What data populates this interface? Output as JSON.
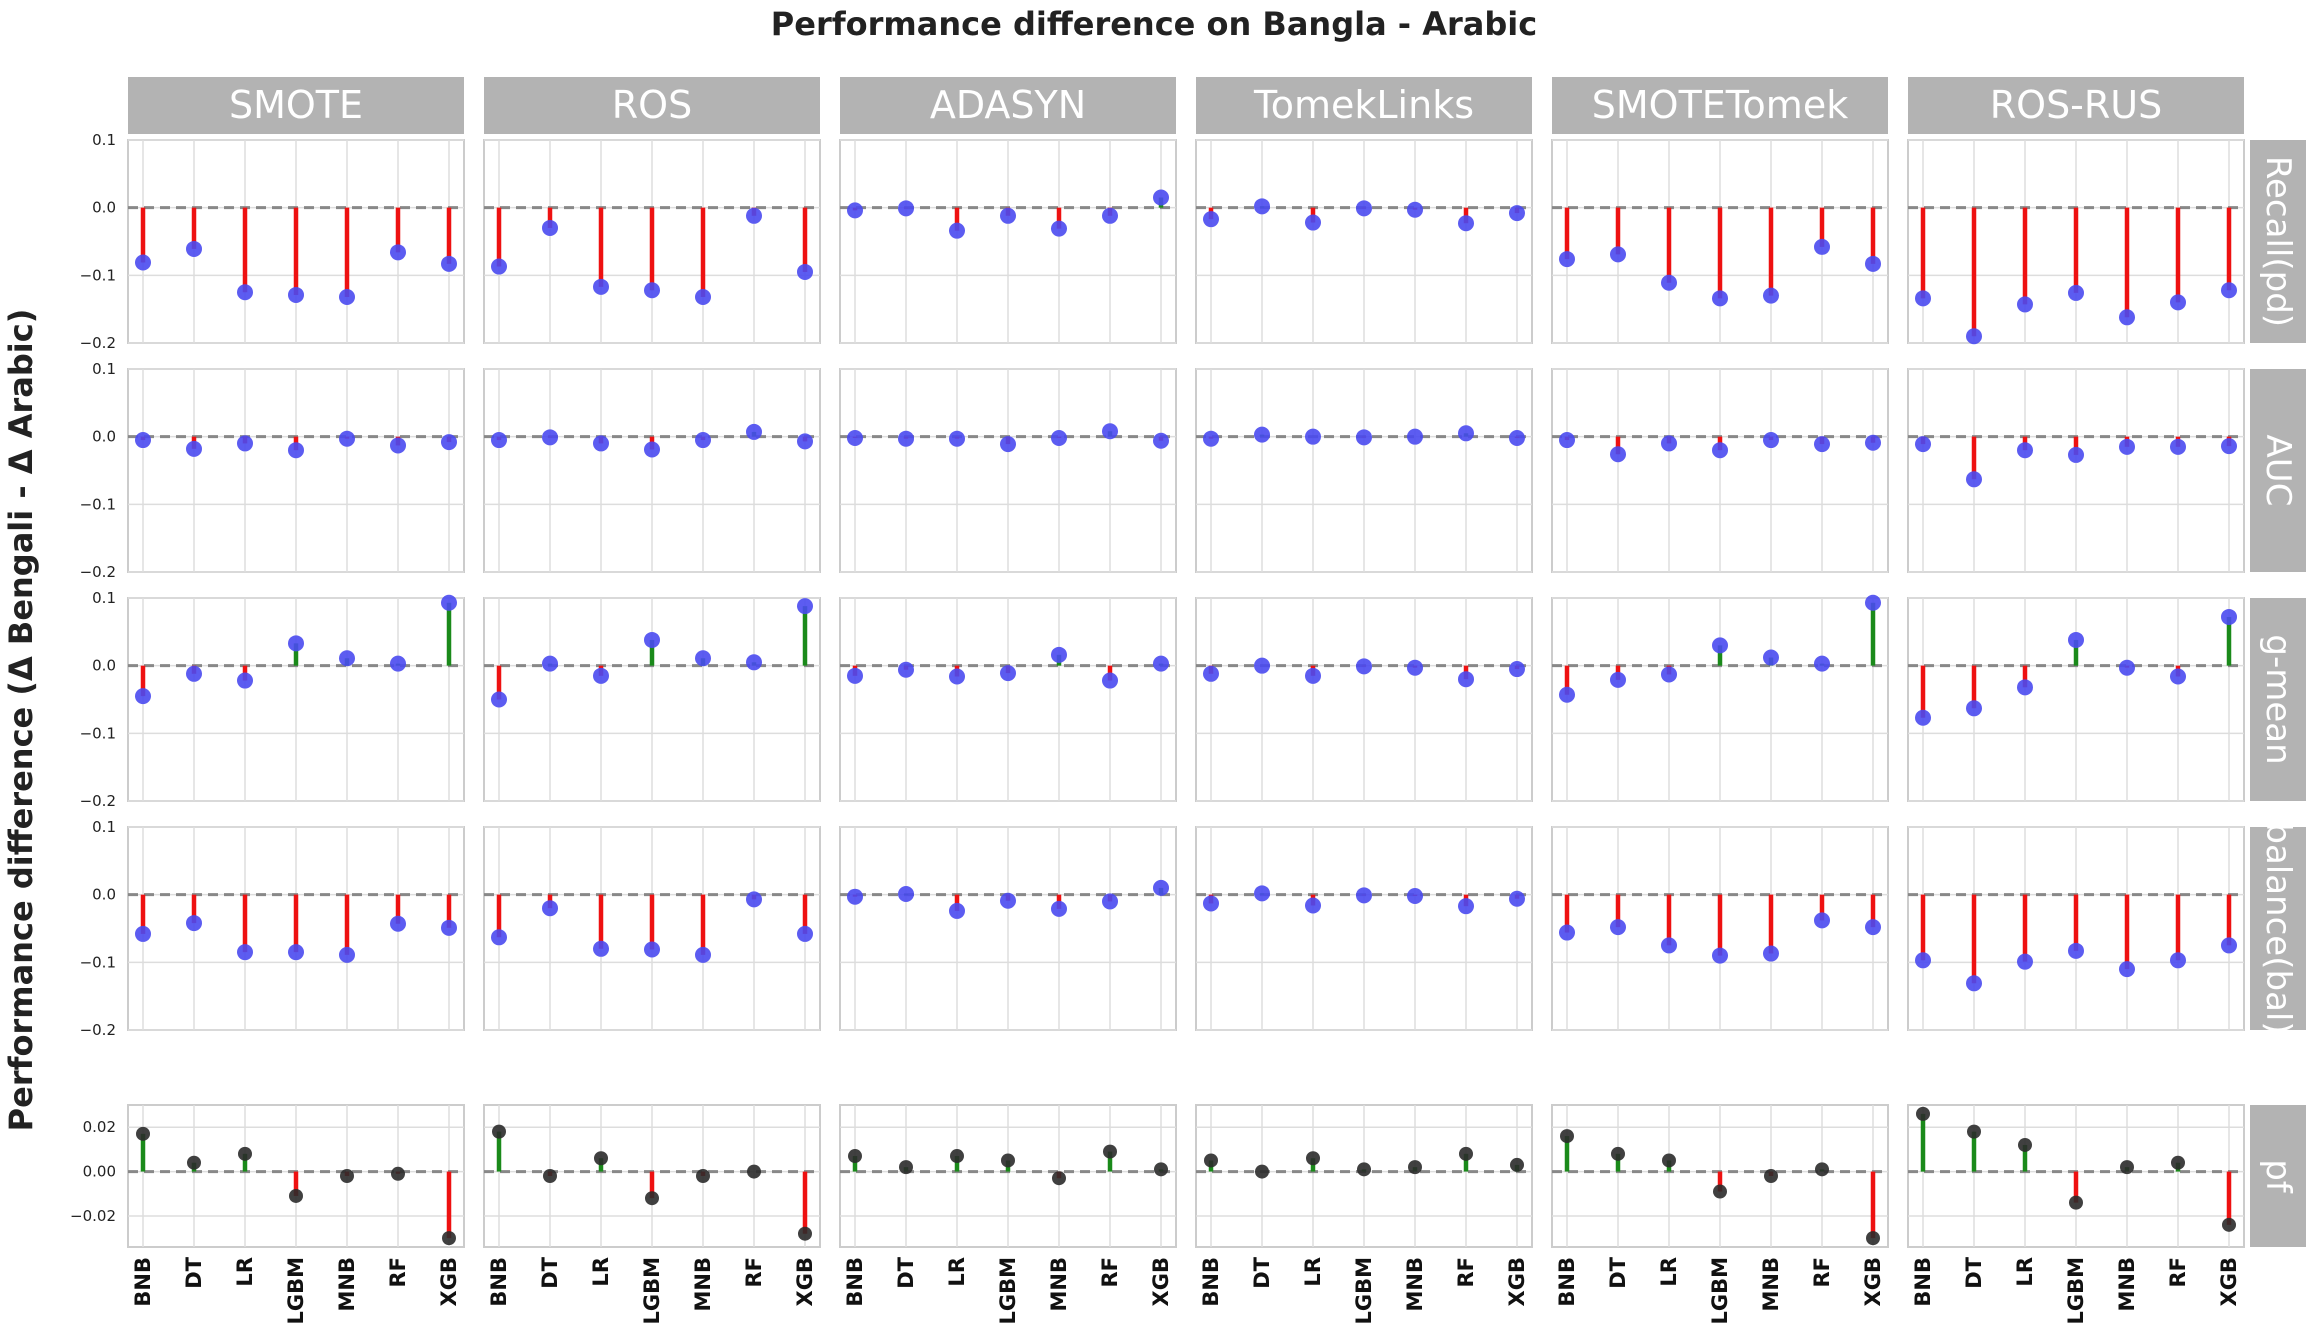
{
  "chart_data": {
    "type": "lollipop",
    "title": "Performance difference on Bangla - Arabic",
    "ylabel": "Performance difference (Δ Bengali - Δ Arabic)",
    "methods": [
      "SMOTE",
      "ROS",
      "ADASYN",
      "TomekLinks",
      "SMOTETomek",
      "ROS-RUS"
    ],
    "metrics": [
      "Recall(pd)",
      "AUC",
      "g-mean",
      "balance(bal)",
      "pf"
    ],
    "classifiers": [
      "BNB",
      "DT",
      "LR",
      "LGBM",
      "MNB",
      "RF",
      "XGB"
    ],
    "ylim_main": [
      -0.2,
      0.1
    ],
    "yticks_main": [
      0.1,
      0.0,
      -0.1,
      -0.2
    ],
    "ytick_labels_main": [
      "0.1",
      "0.0",
      "−0.1",
      "−0.2"
    ],
    "ylim_pf": [
      -0.034,
      0.03
    ],
    "yticks_pf": [
      0.02,
      0.0,
      -0.02
    ],
    "ytick_labels_pf": [
      "0.02",
      "0.00",
      "−0.02"
    ],
    "colors": {
      "positive_stem": "#1a8a1a",
      "negative_stem": "#ee1111",
      "marker_main": "#4a4af0",
      "marker_pf": "#2b2b2b",
      "header_bg": "#b3b3b3",
      "grid": "#dddddd",
      "zero_line": "#888888"
    },
    "values": {
      "Recall(pd)": {
        "SMOTE": [
          -0.081,
          -0.061,
          -0.125,
          -0.129,
          -0.132,
          -0.066,
          -0.083
        ],
        "ROS": [
          -0.087,
          -0.03,
          -0.117,
          -0.122,
          -0.132,
          -0.012,
          -0.095
        ],
        "ADASYN": [
          -0.004,
          -0.001,
          -0.034,
          -0.012,
          -0.031,
          -0.012,
          0.015
        ],
        "TomekLinks": [
          -0.017,
          0.002,
          -0.022,
          -0.001,
          -0.003,
          -0.023,
          -0.008
        ],
        "SMOTETomek": [
          -0.076,
          -0.069,
          -0.111,
          -0.134,
          -0.13,
          -0.058,
          -0.083
        ],
        "ROS-RUS": [
          -0.134,
          -0.19,
          -0.143,
          -0.126,
          -0.162,
          -0.14,
          -0.122
        ]
      },
      "AUC": {
        "SMOTE": [
          -0.005,
          -0.018,
          -0.01,
          -0.02,
          -0.003,
          -0.013,
          -0.008
        ],
        "ROS": [
          -0.005,
          -0.001,
          -0.01,
          -0.019,
          -0.005,
          0.007,
          -0.007
        ],
        "ADASYN": [
          -0.002,
          -0.003,
          -0.003,
          -0.011,
          -0.002,
          0.008,
          -0.006
        ],
        "TomekLinks": [
          -0.003,
          0.003,
          0.0,
          -0.001,
          0.0,
          0.005,
          -0.002
        ],
        "SMOTETomek": [
          -0.005,
          -0.026,
          -0.01,
          -0.02,
          -0.005,
          -0.011,
          -0.009
        ],
        "ROS-RUS": [
          -0.011,
          -0.063,
          -0.02,
          -0.027,
          -0.015,
          -0.015,
          -0.014
        ]
      },
      "g-mean": {
        "SMOTE": [
          -0.045,
          -0.012,
          -0.022,
          0.033,
          0.011,
          0.003,
          0.093
        ],
        "ROS": [
          -0.05,
          0.003,
          -0.015,
          0.038,
          0.011,
          0.005,
          0.088
        ],
        "ADASYN": [
          -0.015,
          -0.006,
          -0.016,
          -0.011,
          0.016,
          -0.022,
          0.003
        ],
        "TomekLinks": [
          -0.012,
          0.0,
          -0.015,
          -0.001,
          -0.003,
          -0.02,
          -0.005
        ],
        "SMOTETomek": [
          -0.043,
          -0.021,
          -0.013,
          0.03,
          0.012,
          0.003,
          0.093
        ],
        "ROS-RUS": [
          -0.077,
          -0.063,
          -0.032,
          0.038,
          -0.003,
          -0.016,
          0.072
        ]
      },
      "balance(bal)": {
        "SMOTE": [
          -0.058,
          -0.042,
          -0.085,
          -0.085,
          -0.089,
          -0.043,
          -0.049
        ],
        "ROS": [
          -0.063,
          -0.02,
          -0.08,
          -0.081,
          -0.089,
          -0.007,
          -0.058
        ],
        "ADASYN": [
          -0.003,
          0.001,
          -0.024,
          -0.009,
          -0.021,
          -0.01,
          0.01
        ],
        "TomekLinks": [
          -0.013,
          0.002,
          -0.016,
          -0.001,
          -0.002,
          -0.017,
          -0.006
        ],
        "SMOTETomek": [
          -0.056,
          -0.048,
          -0.075,
          -0.09,
          -0.087,
          -0.038,
          -0.048
        ],
        "ROS-RUS": [
          -0.097,
          -0.131,
          -0.099,
          -0.083,
          -0.11,
          -0.097,
          -0.075
        ]
      },
      "pf": {
        "SMOTE": [
          0.017,
          0.004,
          0.008,
          -0.011,
          -0.002,
          -0.001,
          -0.03
        ],
        "ROS": [
          0.018,
          -0.002,
          0.006,
          -0.012,
          -0.002,
          0.0,
          -0.028
        ],
        "ADASYN": [
          0.007,
          0.002,
          0.007,
          0.005,
          -0.003,
          0.009,
          0.001
        ],
        "TomekLinks": [
          0.005,
          0.0,
          0.006,
          0.001,
          0.002,
          0.008,
          0.003
        ],
        "SMOTETomek": [
          0.016,
          0.008,
          0.005,
          -0.009,
          -0.002,
          0.001,
          -0.03
        ],
        "ROS-RUS": [
          0.026,
          0.018,
          0.012,
          -0.014,
          0.002,
          0.004,
          -0.024
        ]
      }
    }
  }
}
